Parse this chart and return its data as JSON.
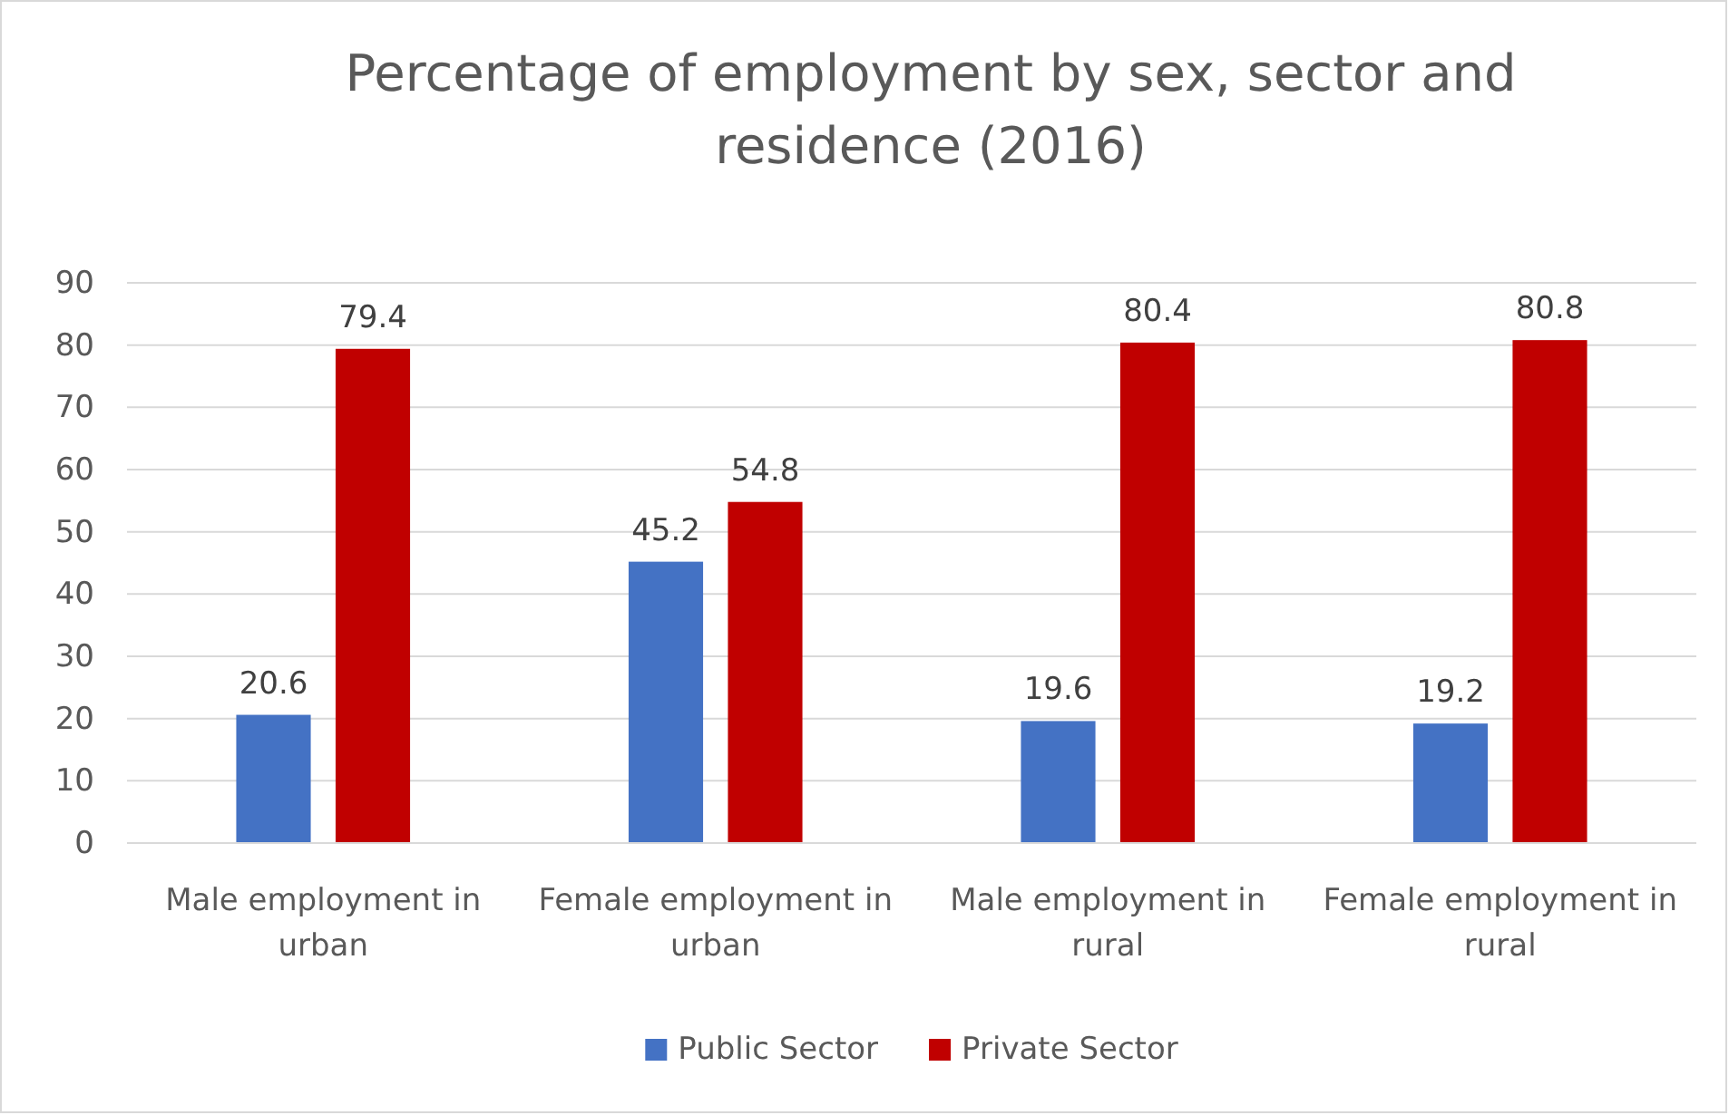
{
  "chart_data": {
    "type": "bar",
    "title": "Percentage of employment by sex, sector and residence (2016)",
    "categories": [
      "Male employment in urban",
      "Female employment in urban",
      "Male employment in rural",
      "Female employment in rural"
    ],
    "series": [
      {
        "name": "Public Sector",
        "color": "#4472c4",
        "values": [
          20.6,
          45.2,
          19.6,
          19.2
        ]
      },
      {
        "name": "Private Sector",
        "color": "#c00000",
        "values": [
          79.4,
          54.8,
          80.4,
          80.8
        ]
      }
    ],
    "ylim": [
      0,
      90
    ],
    "yticks": [
      0,
      10,
      20,
      30,
      40,
      50,
      60,
      70,
      80,
      90
    ],
    "grid": "y",
    "legend": "bottom",
    "data_labels": true
  }
}
